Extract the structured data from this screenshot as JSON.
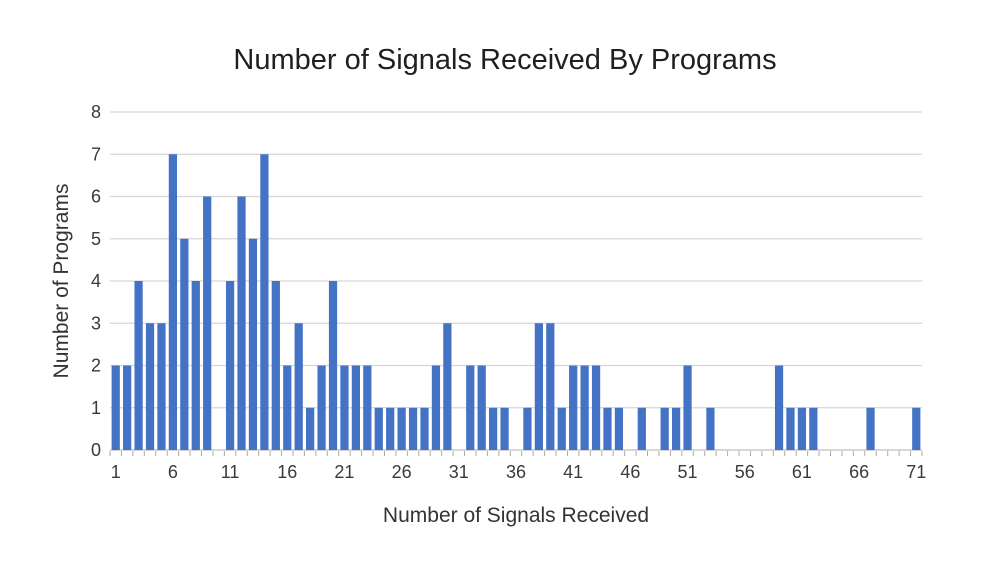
{
  "page": {
    "background_color": "#ffffff"
  },
  "chart_data": {
    "type": "bar",
    "title": "Number of Signals Received By Programs",
    "xlabel": "Number of Signals Received",
    "ylabel": "Number of Programs",
    "categories": [
      1,
      2,
      3,
      4,
      5,
      6,
      7,
      8,
      9,
      10,
      11,
      12,
      13,
      14,
      15,
      16,
      17,
      18,
      19,
      20,
      21,
      22,
      23,
      24,
      25,
      26,
      27,
      28,
      29,
      30,
      31,
      32,
      33,
      34,
      35,
      36,
      37,
      38,
      39,
      40,
      41,
      42,
      43,
      44,
      45,
      46,
      47,
      48,
      49,
      50,
      51,
      52,
      53,
      54,
      55,
      56,
      57,
      58,
      59,
      60,
      61,
      62,
      63,
      64,
      65,
      66,
      67,
      68,
      69,
      70,
      71
    ],
    "values": [
      2,
      2,
      4,
      3,
      3,
      7,
      5,
      4,
      6,
      0,
      4,
      6,
      5,
      7,
      4,
      2,
      3,
      1,
      2,
      4,
      2,
      2,
      2,
      1,
      1,
      1,
      1,
      1,
      2,
      3,
      0,
      2,
      2,
      1,
      1,
      0,
      1,
      3,
      3,
      1,
      2,
      2,
      2,
      1,
      1,
      0,
      1,
      0,
      1,
      1,
      2,
      0,
      1,
      0,
      0,
      0,
      0,
      0,
      2,
      1,
      1,
      1,
      0,
      0,
      0,
      0,
      1,
      0,
      0,
      0,
      1
    ],
    "ylim": [
      0,
      8
    ],
    "yticks": [
      0,
      1,
      2,
      3,
      4,
      5,
      6,
      7,
      8
    ],
    "xtick_labels": [
      1,
      6,
      11,
      16,
      21,
      26,
      31,
      36,
      41,
      46,
      51,
      56,
      61,
      66,
      71
    ],
    "grid": true,
    "legend": "none",
    "bar_color": "#4472C4",
    "gridline_color": "#D6D6D6",
    "axis_line_color": "#BFBFBF",
    "tick_mark_color": "#ABABAB",
    "text_color": "#3a3a3a"
  }
}
